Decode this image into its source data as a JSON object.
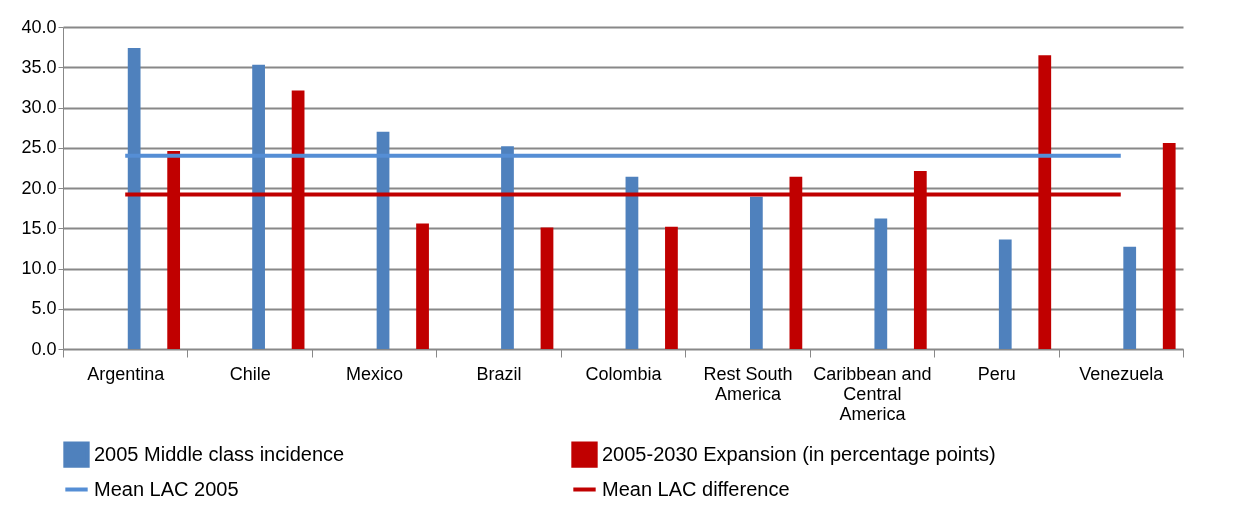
{
  "chart_data": {
    "type": "bar",
    "categories": [
      "Argentina",
      "Chile",
      "Mexico",
      "Brazil",
      "Colombia",
      "Rest South America",
      "Caribbean and Central America",
      "Peru",
      "Venezuela"
    ],
    "series": [
      {
        "name": "2005 Middle class incidence",
        "color": "#4f81bd",
        "values": [
          37.4,
          35.3,
          27.0,
          25.2,
          21.4,
          18.9,
          16.2,
          13.6,
          12.7
        ]
      },
      {
        "name": "2005-2030 Expansion (in percentage points)",
        "color": "#c00000",
        "values": [
          24.6,
          32.1,
          15.6,
          15.1,
          15.2,
          21.4,
          22.1,
          36.5,
          25.6
        ]
      },
      {
        "name": "Mean LAC 2005",
        "type": "line",
        "color": "#558ed5",
        "values": [
          24.0,
          24.0,
          24.0,
          24.0,
          24.0,
          24.0,
          24.0,
          24.0,
          24.0
        ]
      },
      {
        "name": "Mean LAC difference",
        "type": "line",
        "color": "#c00000",
        "values": [
          19.2,
          19.2,
          19.2,
          19.2,
          19.2,
          19.2,
          19.2,
          19.2,
          19.2
        ]
      }
    ],
    "ylim": [
      0,
      40
    ],
    "yticks": [
      {
        "value": 0,
        "label": "0.0"
      },
      {
        "value": 5,
        "label": "5.0"
      },
      {
        "value": 10,
        "label": "10.0"
      },
      {
        "value": 15,
        "label": "15.0"
      },
      {
        "value": 20,
        "label": "20.0"
      },
      {
        "value": 25,
        "label": "25.0"
      },
      {
        "value": 30,
        "label": "30.0"
      },
      {
        "value": 35,
        "label": "35.0"
      },
      {
        "value": 40,
        "label": "40.0"
      }
    ],
    "grid": "y",
    "legend": "bottom"
  }
}
